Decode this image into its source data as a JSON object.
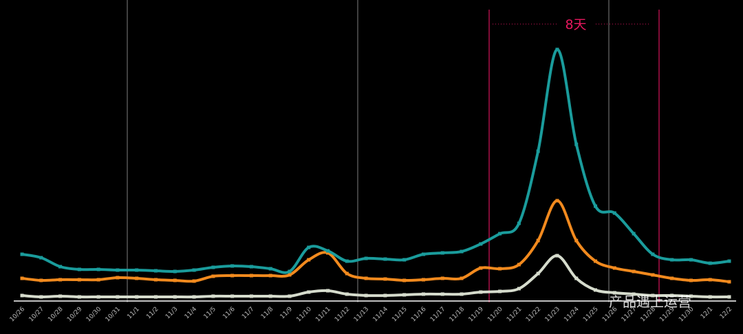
{
  "chart_data": {
    "type": "line",
    "categories": [
      "10/26",
      "10/27",
      "10/28",
      "10/29",
      "10/30",
      "10/31",
      "11/1",
      "11/2",
      "11/3",
      "11/4",
      "11/5",
      "11/6",
      "11/7",
      "11/8",
      "11/9",
      "11/10",
      "11/11",
      "11/12",
      "11/13",
      "11/14",
      "11/15",
      "11/16",
      "11/17",
      "11/18",
      "11/19",
      "11/20",
      "11/21",
      "11/22",
      "11/23",
      "11/24",
      "11/25",
      "11/26",
      "11/27",
      "11/28",
      "11/29",
      "11/30",
      "12/1",
      "12/2"
    ],
    "series": [
      {
        "color": "#1a9c9c",
        "values": [
          68,
          63,
          50,
          46,
          46,
          45,
          45,
          44,
          43,
          45,
          49,
          51,
          50,
          47,
          43,
          78,
          73,
          58,
          62,
          61,
          60,
          68,
          70,
          72,
          83,
          98,
          113,
          218,
          366,
          228,
          138,
          128,
          98,
          68,
          60,
          60,
          55,
          58
        ]
      },
      {
        "color": "#f28a1e",
        "values": [
          33,
          30,
          31,
          31,
          31,
          34,
          33,
          31,
          30,
          29,
          36,
          37,
          37,
          37,
          38,
          60,
          70,
          40,
          33,
          32,
          30,
          31,
          33,
          33,
          48,
          47,
          53,
          88,
          146,
          88,
          58,
          48,
          43,
          38,
          33,
          30,
          31,
          28
        ]
      },
      {
        "color": "#d6dccd",
        "values": [
          8,
          6,
          7,
          6,
          6,
          6,
          6,
          6,
          6,
          6,
          7,
          7,
          7,
          7,
          7,
          13,
          15,
          10,
          8,
          8,
          9,
          10,
          10,
          10,
          13,
          14,
          18,
          40,
          66,
          33,
          16,
          12,
          10,
          8,
          8,
          7,
          6,
          6
        ]
      }
    ],
    "ylim": [
      0,
      438
    ],
    "annotation": "8天",
    "watermark": "产品遇上运营"
  }
}
